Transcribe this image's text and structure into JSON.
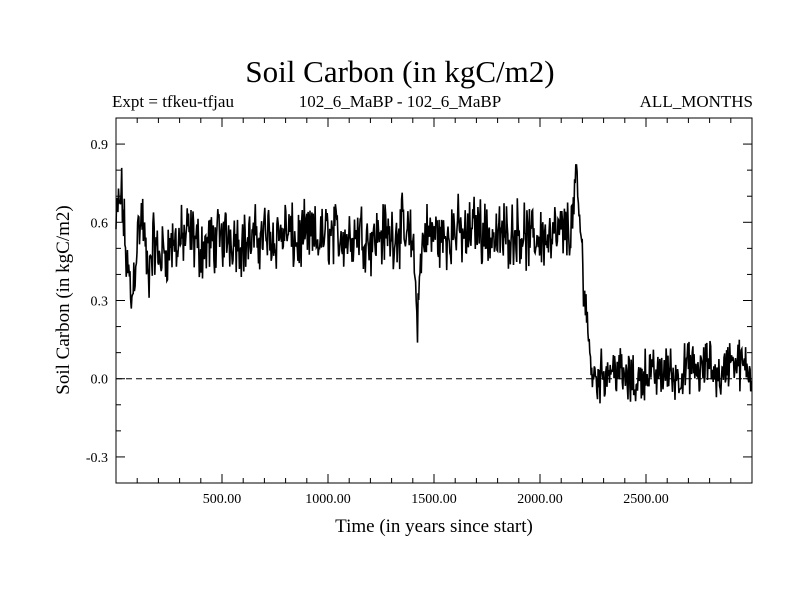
{
  "chart_data": {
    "type": "line",
    "title": "Soil Carbon (in kgC/m2)",
    "subtitle_left": "Expt = tfkeu-tfjau",
    "subtitle_center": "102_6_MaBP - 102_6_MaBP",
    "subtitle_right": "ALL_MONTHS",
    "xlabel": "Time (in years since start)",
    "ylabel": "Soil Carbon (in kgC/m2)",
    "xlim": [
      0,
      3000
    ],
    "ylim": [
      -0.4,
      1.0
    ],
    "xticks": [
      500,
      1000,
      1500,
      2000,
      2500
    ],
    "xtick_labels": [
      "500.00",
      "1000.00",
      "1500.00",
      "2000.00",
      "2500.00"
    ],
    "yticks": [
      -0.3,
      0.0,
      0.3,
      0.6,
      0.9
    ],
    "ytick_labels": [
      "-0.3",
      "0.0",
      "0.3",
      "0.6",
      "0.9"
    ],
    "reference_line": {
      "y": 0.0,
      "style": "dashed"
    },
    "grid": false,
    "line_color": "#000000",
    "series": [
      {
        "x": [
          0,
          25,
          50,
          75,
          100,
          125,
          150,
          175,
          200,
          250,
          300,
          350,
          400,
          450,
          500,
          550,
          600,
          650,
          700,
          750,
          800,
          850,
          900,
          950,
          1000,
          1050,
          1100,
          1150,
          1200,
          1250,
          1300,
          1350,
          1400,
          1420,
          1450,
          1500,
          1550,
          1600,
          1650,
          1700,
          1750,
          1800,
          1850,
          1900,
          1950,
          2000,
          2050,
          2100,
          2150,
          2170,
          2200,
          2220,
          2240,
          2260,
          2300,
          2350,
          2400,
          2450,
          2500,
          2550,
          2600,
          2650,
          2700,
          2750,
          2800,
          2850,
          2900,
          2950,
          3000
        ],
        "values": [
          0.58,
          0.72,
          0.45,
          0.3,
          0.55,
          0.62,
          0.38,
          0.52,
          0.47,
          0.5,
          0.53,
          0.55,
          0.5,
          0.52,
          0.54,
          0.55,
          0.52,
          0.53,
          0.56,
          0.54,
          0.57,
          0.52,
          0.55,
          0.53,
          0.56,
          0.55,
          0.54,
          0.57,
          0.53,
          0.56,
          0.55,
          0.57,
          0.52,
          0.25,
          0.55,
          0.56,
          0.53,
          0.58,
          0.54,
          0.6,
          0.55,
          0.54,
          0.56,
          0.57,
          0.53,
          0.55,
          0.54,
          0.56,
          0.58,
          0.8,
          0.45,
          0.25,
          0.05,
          0.0,
          0.02,
          0.05,
          0.0,
          -0.02,
          0.03,
          0.01,
          0.04,
          0.0,
          0.05,
          0.02,
          0.06,
          0.0,
          0.08,
          0.05,
          0.02
        ]
      }
    ]
  }
}
